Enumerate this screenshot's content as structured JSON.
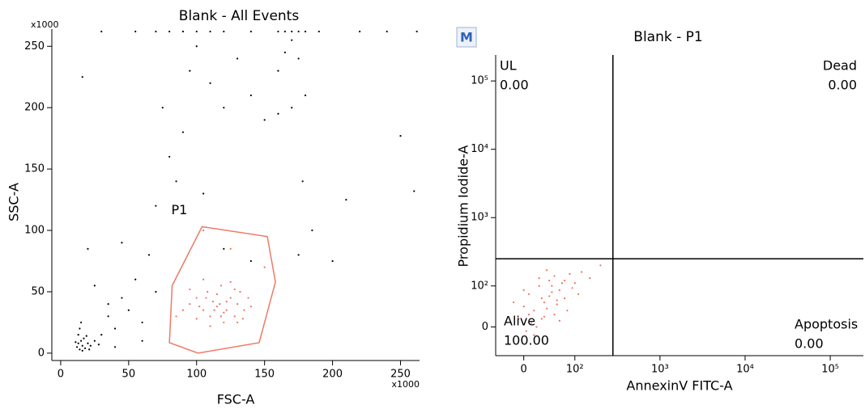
{
  "chart_data": [
    {
      "type": "scatter",
      "title": "Blank - All Events",
      "x_label": "FSC-A",
      "y_label": "SSC-A",
      "x_multiplier": "x1000",
      "y_multiplier": "x1000",
      "scale": "linear",
      "xlim": [
        -6.5,
        264
      ],
      "ylim": [
        -6,
        264
      ],
      "xticks": [
        0,
        50,
        100,
        150,
        200,
        250
      ],
      "yticks": [
        0,
        50,
        100,
        150,
        200,
        250
      ],
      "series": [
        {
          "color": "#000000",
          "x": [
            12,
            13,
            14,
            15,
            16,
            17,
            13,
            18,
            20,
            22,
            14,
            16,
            11,
            19,
            21,
            25,
            28,
            15,
            30,
            35,
            40,
            45,
            50,
            55,
            60,
            65,
            70,
            75,
            80,
            85,
            90,
            95,
            100,
            105,
            110,
            120,
            130,
            140,
            150,
            160,
            165,
            170,
            175,
            180,
            170,
            160,
            175,
            178,
            185,
            200,
            210,
            250,
            260,
            30,
            55,
            70,
            80,
            90,
            100,
            110,
            120,
            140,
            160,
            165,
            170,
            175,
            180,
            190,
            220,
            240,
            262,
            16,
            20,
            25,
            35,
            45,
            60,
            70,
            40,
            120,
            140
          ],
          "y": [
            5,
            8,
            3,
            10,
            6,
            12,
            15,
            4,
            8,
            6,
            20,
            2,
            9,
            14,
            3,
            10,
            7,
            25,
            15,
            30,
            20,
            45,
            35,
            60,
            25,
            80,
            120,
            200,
            160,
            140,
            180,
            230,
            250,
            130,
            220,
            200,
            240,
            210,
            190,
            230,
            245,
            255,
            240,
            210,
            200,
            195,
            80,
            140,
            100,
            75,
            125,
            177,
            132,
            262,
            262,
            262,
            262,
            262,
            262,
            262,
            262,
            262,
            262,
            262,
            262,
            262,
            262,
            262,
            262,
            262,
            262,
            225,
            85,
            55,
            40,
            90,
            10,
            50,
            5,
            85,
            75
          ]
        },
        {
          "color": "#e8735f",
          "x": [
            95,
            100,
            105,
            108,
            110,
            112,
            115,
            118,
            120,
            122,
            125,
            128,
            130,
            132,
            135,
            100,
            105,
            110,
            115,
            120,
            125,
            130,
            138,
            140,
            95,
            90,
            102,
            118,
            122,
            128,
            134,
            113,
            107,
            125,
            105,
            150,
            85,
            117
          ],
          "y": [
            40,
            45,
            35,
            50,
            30,
            42,
            38,
            55,
            25,
            35,
            45,
            30,
            40,
            50,
            35,
            28,
            60,
            22,
            48,
            33,
            58,
            25,
            45,
            38,
            52,
            35,
            38,
            30,
            42,
            52,
            28,
            35,
            45,
            85,
            100,
            70,
            30,
            40
          ]
        }
      ],
      "gate": {
        "label": "P1",
        "color": "#ee7a66",
        "x": [
          104,
          152,
          158,
          146,
          101,
          80,
          82
        ],
        "y": [
          103,
          95,
          58,
          8.5,
          0,
          8.5,
          55
        ]
      }
    },
    {
      "type": "quadrant-scatter",
      "title": "Blank - P1",
      "badge": "M",
      "x_label": "AnnexinV FITC-A",
      "y_label": "Propidium Iodide-A",
      "scale": "biexponential",
      "xlim": [
        -55,
        245000
      ],
      "ylim": [
        -70,
        240000
      ],
      "xticks": [
        0,
        {
          "value": 100,
          "label": "10²"
        },
        {
          "value": 1000,
          "label": "10³"
        },
        {
          "value": 10000,
          "label": "10⁴"
        },
        {
          "value": 100000,
          "label": "10⁵"
        }
      ],
      "yticks": [
        0,
        {
          "value": 100,
          "label": "10²"
        },
        {
          "value": 1000,
          "label": "10³"
        },
        {
          "value": 10000,
          "label": "10⁴"
        },
        {
          "value": 100000,
          "label": "10⁵"
        }
      ],
      "quadrant_x": 280,
      "quadrant_y": 250,
      "quadrants": {
        "names": [
          "UL",
          "Dead",
          "Alive",
          "Apoptosis"
        ],
        "values": [
          0,
          0,
          100,
          0
        ],
        "value_labels": [
          "0.00",
          "0.00",
          "100.00",
          "0.00"
        ]
      },
      "series": [
        {
          "color": "#e8735f",
          "x": [
            -10,
            0,
            10,
            20,
            30,
            40,
            50,
            60,
            70,
            80,
            90,
            100,
            120,
            150,
            200,
            5,
            15,
            25,
            35,
            45,
            55,
            65,
            75,
            85,
            95,
            -20,
            30,
            40,
            50,
            60,
            70,
            20,
            10,
            0,
            45,
            55,
            65,
            35,
            80,
            110
          ],
          "y": [
            20,
            50,
            80,
            40,
            100,
            60,
            120,
            30,
            90,
            70,
            150,
            110,
            160,
            130,
            200,
            -10,
            10,
            0,
            70,
            45,
            85,
            55,
            110,
            40,
            95,
            60,
            130,
            25,
            75,
            140,
            15,
            -20,
            30,
            90,
            170,
            100,
            65,
            20,
            120,
            80
          ]
        }
      ]
    }
  ]
}
